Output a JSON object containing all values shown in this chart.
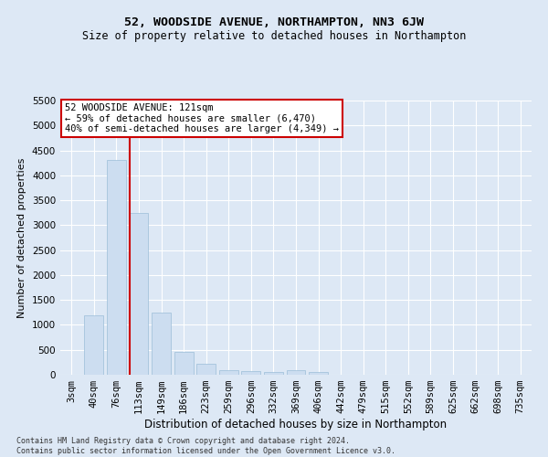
{
  "title": "52, WOODSIDE AVENUE, NORTHAMPTON, NN3 6JW",
  "subtitle": "Size of property relative to detached houses in Northampton",
  "xlabel": "Distribution of detached houses by size in Northampton",
  "ylabel": "Number of detached properties",
  "footer_line1": "Contains HM Land Registry data © Crown copyright and database right 2024.",
  "footer_line2": "Contains public sector information licensed under the Open Government Licence v3.0.",
  "categories": [
    "3sqm",
    "40sqm",
    "76sqm",
    "113sqm",
    "149sqm",
    "186sqm",
    "223sqm",
    "259sqm",
    "296sqm",
    "332sqm",
    "369sqm",
    "406sqm",
    "442sqm",
    "479sqm",
    "515sqm",
    "552sqm",
    "589sqm",
    "625sqm",
    "662sqm",
    "698sqm",
    "735sqm"
  ],
  "values": [
    0,
    1200,
    4300,
    3250,
    1250,
    450,
    220,
    100,
    70,
    50,
    100,
    50,
    0,
    0,
    0,
    0,
    0,
    0,
    0,
    0,
    0
  ],
  "bar_color": "#ccddf0",
  "bar_edge_color": "#9bbdd8",
  "vline_color": "#cc0000",
  "vline_x": 2.58,
  "annotation_text": "52 WOODSIDE AVENUE: 121sqm\n← 59% of detached houses are smaller (6,470)\n40% of semi-detached houses are larger (4,349) →",
  "annotation_box_color": "#ffffff",
  "annotation_box_edge": "#cc0000",
  "ylim": [
    0,
    5500
  ],
  "yticks": [
    0,
    500,
    1000,
    1500,
    2000,
    2500,
    3000,
    3500,
    4000,
    4500,
    5000,
    5500
  ],
  "bg_color": "#dde8f5",
  "plot_bg_color": "#dde8f5",
  "grid_color": "#ffffff",
  "title_fontsize": 9.5,
  "subtitle_fontsize": 8.5,
  "xlabel_fontsize": 8.5,
  "ylabel_fontsize": 8,
  "tick_fontsize": 7.5,
  "annotation_fontsize": 7.5,
  "footer_fontsize": 6
}
